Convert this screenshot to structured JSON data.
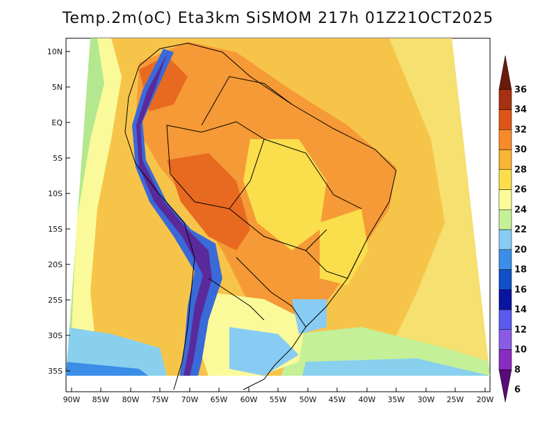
{
  "title": "Temp.2m(oC) Eta3km SiSMOM 217h 01Z21OCT2025",
  "lat_labels": [
    "10N",
    "5N",
    "EQ",
    "5S",
    "10S",
    "15S",
    "20S",
    "25S",
    "30S",
    "35S"
  ],
  "lon_labels": [
    "90W",
    "85W",
    "80W",
    "75W",
    "70W",
    "65W",
    "60W",
    "55W",
    "50W",
    "45W",
    "40W",
    "35W",
    "30W",
    "25W",
    "20W"
  ],
  "colorbar": {
    "labels": [
      "6",
      "8",
      "10",
      "12",
      "14",
      "16",
      "18",
      "20",
      "22",
      "24",
      "26",
      "28",
      "30",
      "32",
      "34",
      "36"
    ],
    "colors": [
      "#5a0a7a",
      "#8a2cc0",
      "#8a5ce6",
      "#5a5af0",
      "#0a14a0",
      "#0f50c8",
      "#3a8ee8",
      "#88ccf4",
      "#c4f098",
      "#fafa9a",
      "#fade4c",
      "#f8b432",
      "#f88a2a",
      "#e05418",
      "#a83012",
      "#6a1c0a"
    ]
  },
  "regions": {
    "main_field": "#f7c44a",
    "warm_interior": "#f59a36",
    "hot_core": "#e86a20",
    "andes_cold": "#5a2a9a",
    "andes_mid": "#3a6ad8",
    "ocean_cool": "#88d0ee",
    "pacific_green": "#b4e890",
    "pacific_yellow": "#fafa9a",
    "atlantic_pale": "#f5ea7a"
  }
}
